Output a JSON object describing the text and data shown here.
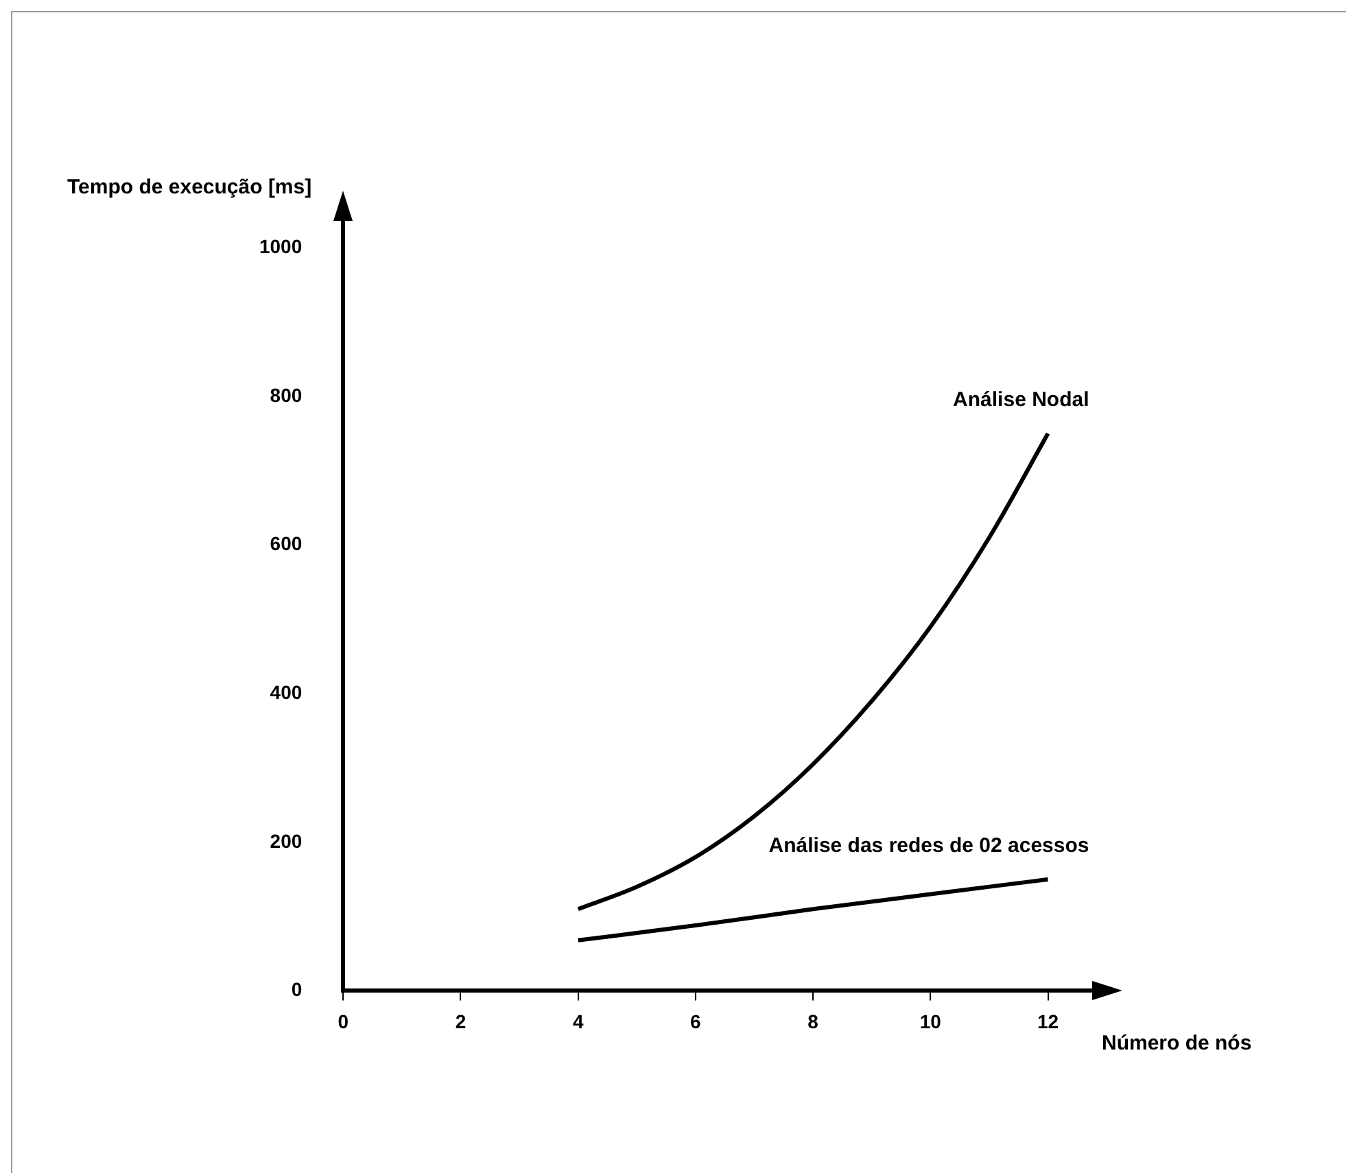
{
  "chart_data": {
    "type": "line",
    "xlabel": "Número de nós",
    "ylabel": "Tempo de execução [ms]",
    "xlim": [
      0,
      12.8
    ],
    "ylim": [
      0,
      1040
    ],
    "xticks": [
      0,
      2,
      4,
      6,
      8,
      10,
      12
    ],
    "yticks": [
      0,
      200,
      400,
      600,
      800,
      1000
    ],
    "legend": false,
    "marker": "none",
    "line_style": "solid",
    "series": [
      {
        "name": "Análise Nodal",
        "color": "#000000",
        "x": [
          4,
          5,
          6,
          7,
          8,
          9,
          10,
          11,
          12
        ],
        "values": [
          110,
          140,
          180,
          235,
          305,
          390,
          490,
          610,
          750
        ]
      },
      {
        "name": "Análise das redes de 02 acessos",
        "color": "#000000",
        "x": [
          4,
          6,
          8,
          10,
          12
        ],
        "values": [
          68,
          88,
          110,
          130,
          150
        ]
      }
    ]
  }
}
